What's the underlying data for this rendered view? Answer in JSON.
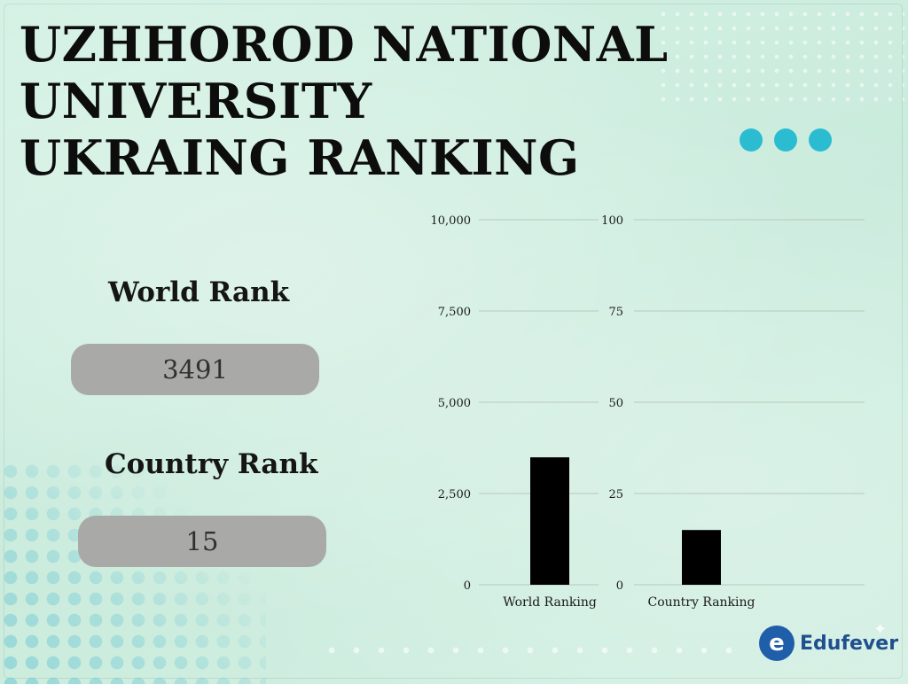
{
  "title_lines": [
    "UZHHOROD NATIONAL",
    "UNIVERSITY",
    "UKRAING RANKING"
  ],
  "stats": {
    "world_label": "World Rank",
    "world_value": "3491",
    "country_label": "Country Rank",
    "country_value": "15"
  },
  "colors": {
    "background": "#cfeee0",
    "accent_dots": "#2bbcd1",
    "pill": "#a9aaa7",
    "bar": "#000000",
    "brand": "#1f5ea8"
  },
  "icons": [
    "menu-dots-icon",
    "edufever-logo-icon"
  ],
  "brand": {
    "name": "Edufever"
  },
  "chart_data": [
    {
      "type": "bar",
      "categories": [
        "World Ranking"
      ],
      "values": [
        3491
      ],
      "ylim": [
        0,
        10000
      ],
      "yticks": [
        0,
        2500,
        5000,
        7500,
        10000
      ],
      "ytick_labels": [
        "0",
        "2,500",
        "5,000",
        "7,500",
        "10,000"
      ],
      "grid": true
    },
    {
      "type": "bar",
      "categories": [
        "Country Ranking"
      ],
      "values": [
        15
      ],
      "ylim": [
        0,
        100
      ],
      "yticks": [
        0,
        25,
        50,
        75,
        100
      ],
      "ytick_labels": [
        "0",
        "25",
        "50",
        "75",
        "100"
      ],
      "grid": true
    }
  ]
}
